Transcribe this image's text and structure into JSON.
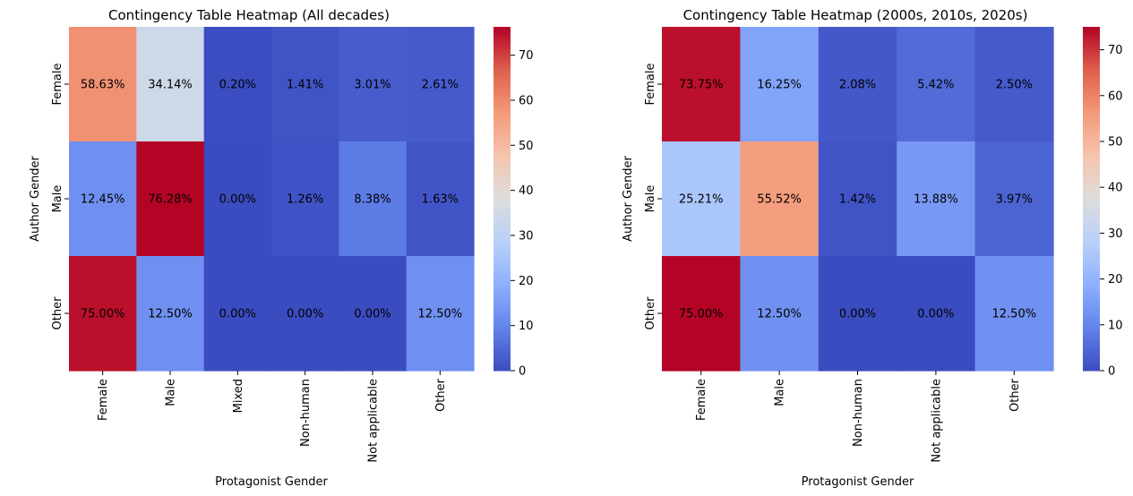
{
  "chart_data": [
    {
      "type": "heatmap",
      "title": "Contingency Table Heatmap (All decades)",
      "xlabel": "Protagonist Gender",
      "ylabel": "Author Gender",
      "x_categories": [
        "Female",
        "Male",
        "Mixed",
        "Non-human",
        "Not applicable",
        "Other"
      ],
      "y_categories": [
        "Female",
        "Male",
        "Other"
      ],
      "values": [
        [
          58.63,
          34.14,
          0.2,
          1.41,
          3.01,
          2.61
        ],
        [
          12.45,
          76.28,
          0.0,
          1.26,
          8.38,
          1.63
        ],
        [
          75.0,
          12.5,
          0.0,
          0.0,
          0.0,
          12.5
        ]
      ],
      "labels": [
        [
          "58.63%",
          "34.14%",
          "0.20%",
          "1.41%",
          "3.01%",
          "2.61%"
        ],
        [
          "12.45%",
          "76.28%",
          "0.00%",
          "1.26%",
          "8.38%",
          "1.63%"
        ],
        [
          "75.00%",
          "12.50%",
          "0.00%",
          "0.00%",
          "0.00%",
          "12.50%"
        ]
      ],
      "vmin": 0,
      "vmax": 76.28,
      "colorbar_ticks": [
        0,
        10,
        20,
        30,
        40,
        50,
        60,
        70
      ],
      "colormap": "coolwarm"
    },
    {
      "type": "heatmap",
      "title": "Contingency Table Heatmap (2000s, 2010s, 2020s)",
      "xlabel": "Protagonist Gender",
      "ylabel": "Author Gender",
      "x_categories": [
        "Female",
        "Male",
        "Non-human",
        "Not applicable",
        "Other"
      ],
      "y_categories": [
        "Female",
        "Male",
        "Other"
      ],
      "values": [
        [
          73.75,
          16.25,
          2.08,
          5.42,
          2.5
        ],
        [
          25.21,
          55.52,
          1.42,
          13.88,
          3.97
        ],
        [
          75.0,
          12.5,
          0.0,
          0.0,
          12.5
        ]
      ],
      "labels": [
        [
          "73.75%",
          "16.25%",
          "2.08%",
          "5.42%",
          "2.50%"
        ],
        [
          "25.21%",
          "55.52%",
          "1.42%",
          "13.88%",
          "3.97%"
        ],
        [
          "75.00%",
          "12.50%",
          "0.00%",
          "0.00%",
          "12.50%"
        ]
      ],
      "vmin": 0,
      "vmax": 75.0,
      "colorbar_ticks": [
        0,
        10,
        20,
        30,
        40,
        50,
        60,
        70
      ],
      "colormap": "coolwarm"
    }
  ]
}
